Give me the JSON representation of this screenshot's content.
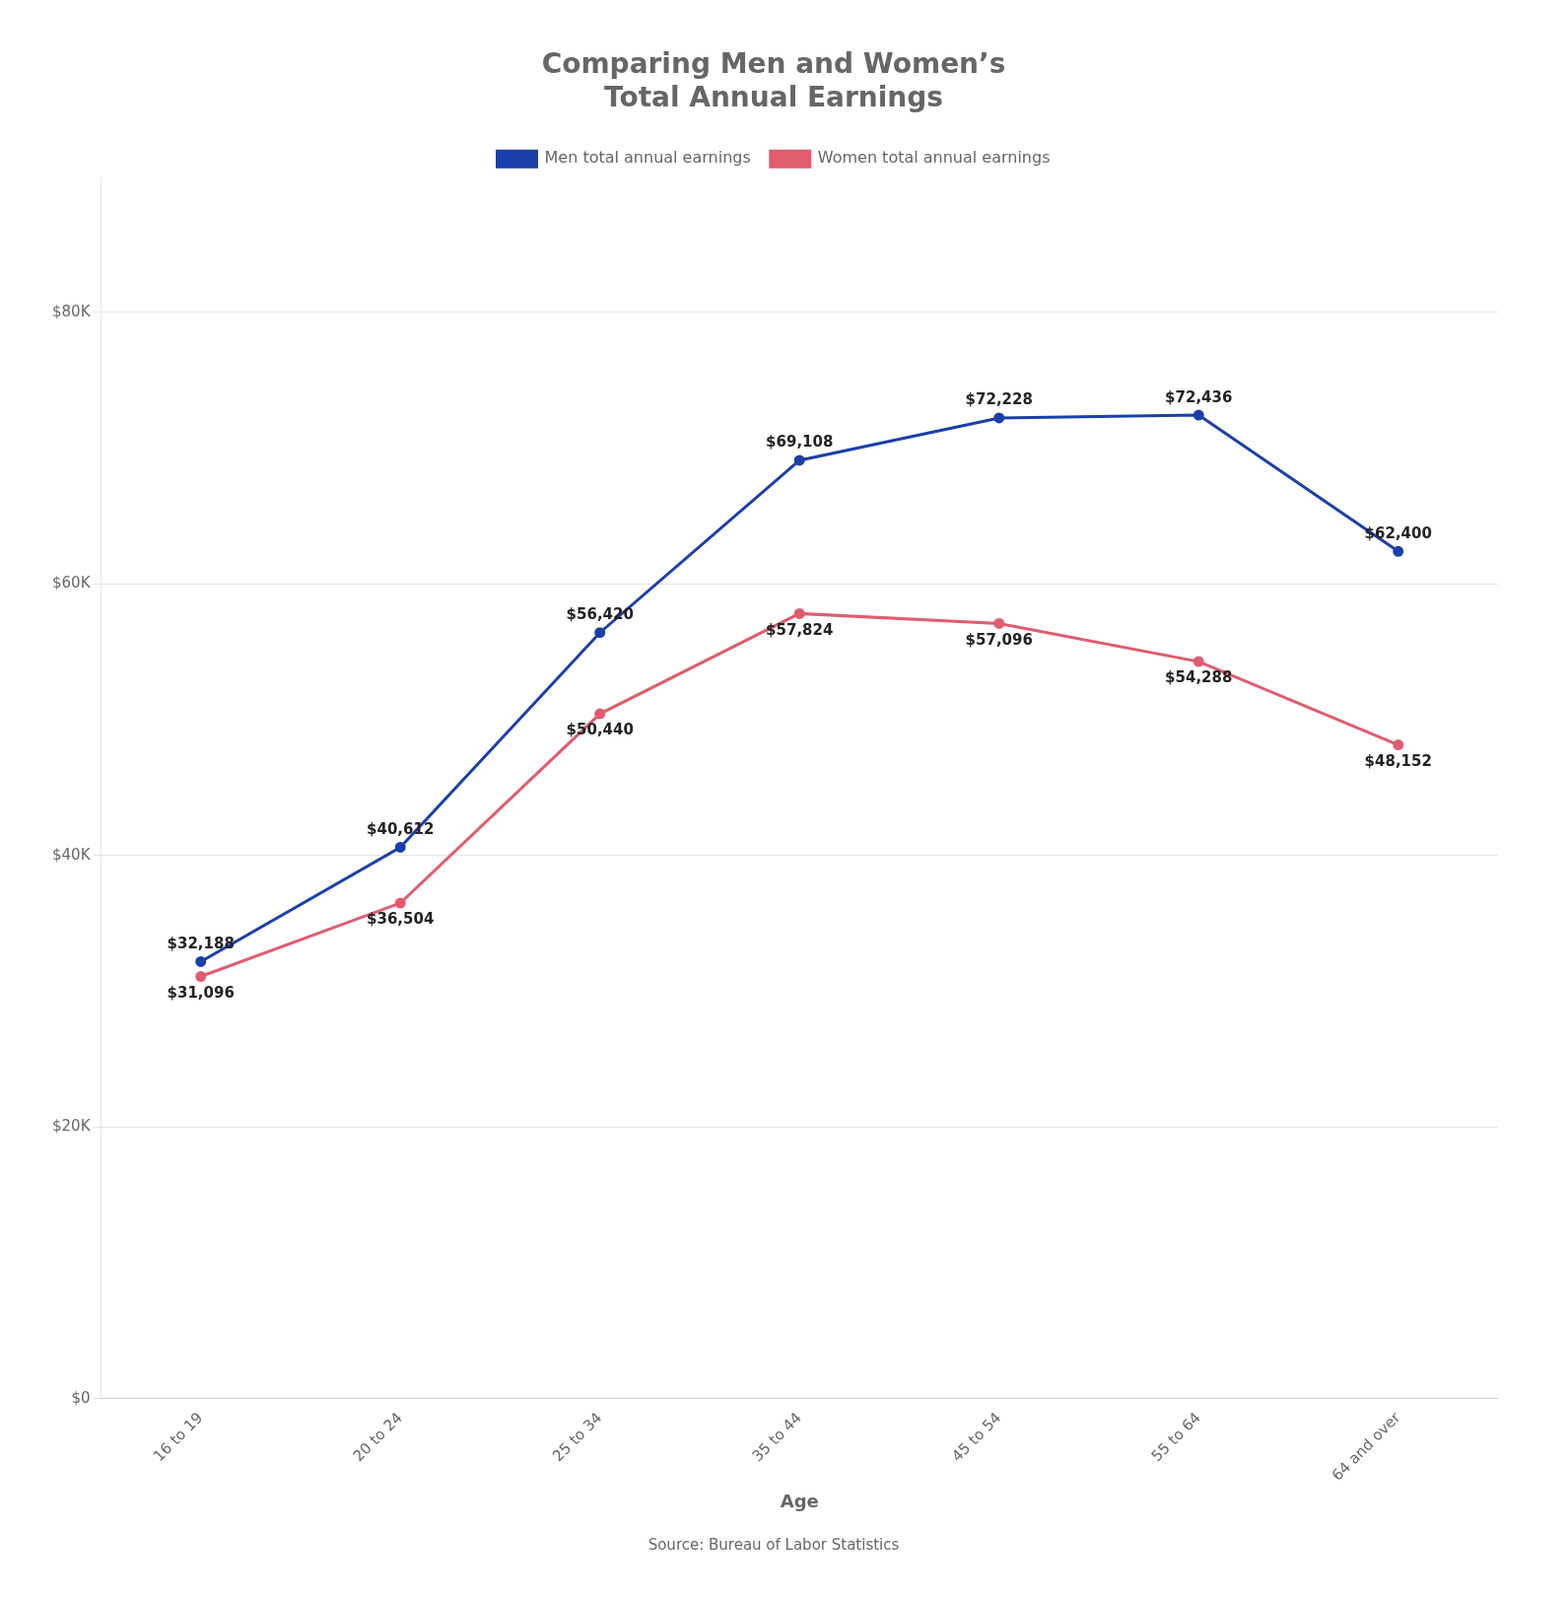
{
  "chart_data": {
    "type": "line",
    "title": "Comparing Men and Women’s\nTotal Annual Earnings",
    "categories": [
      "16 to 19",
      "20 to 24",
      "25 to 34",
      "35 to 44",
      "45 to 54",
      "55 to 64",
      "64 and over"
    ],
    "series": [
      {
        "name": "Men total annual earnings",
        "color": "#1a3faa",
        "values": [
          32188,
          40612,
          56420,
          69108,
          72228,
          72436,
          62400
        ],
        "value_labels": [
          "$32,188",
          "$40,612",
          "$56,420",
          "$69,108",
          "$72,228",
          "$72,436",
          "$62,400"
        ]
      },
      {
        "name": "Women total annual earnings",
        "color": "#e05c6e",
        "values": [
          31096,
          36504,
          50440,
          57824,
          57096,
          54288,
          48152
        ],
        "value_labels": [
          "$31,096",
          "$36,504",
          "$50,440",
          "$57,824",
          "$57,096",
          "$54,288",
          "$48,152"
        ]
      }
    ],
    "xlabel": "Age",
    "annotations": [
      "Source: Bureau of Labor Statistics"
    ],
    "ylim": [
      0,
      90000
    ],
    "yticks": [
      {
        "value": 0,
        "label": "$0"
      },
      {
        "value": 20000,
        "label": "$20K"
      },
      {
        "value": 40000,
        "label": "$40K"
      },
      {
        "value": 60000,
        "label": "$60K"
      },
      {
        "value": 80000,
        "label": "$80K"
      }
    ],
    "grid": "y",
    "legend": "top",
    "data_labels": true
  }
}
